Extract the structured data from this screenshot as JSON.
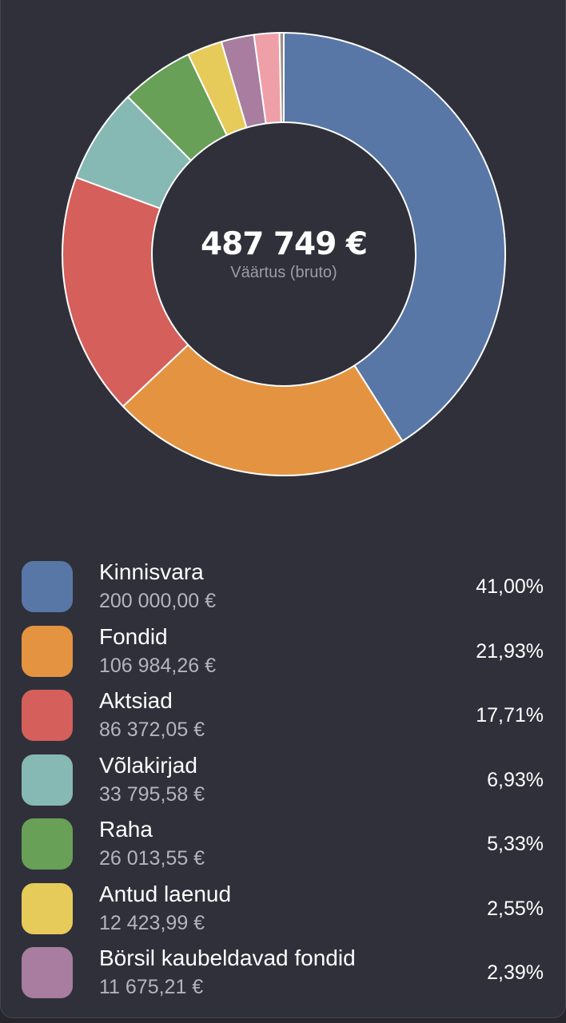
{
  "chart_data": {
    "type": "pie",
    "style": "donut",
    "center": {
      "value": "487 749 €",
      "label": "Väärtus (bruto)"
    },
    "slices": [
      {
        "name": "Kinnisvara",
        "amount": "200 000,00 €",
        "percent_label": "41,00%",
        "value": 41.0,
        "color": "#5877a6"
      },
      {
        "name": "Fondid",
        "amount": "106 984,26 €",
        "percent_label": "21,93%",
        "value": 21.93,
        "color": "#e49441"
      },
      {
        "name": "Aktsiad",
        "amount": "86 372,05 €",
        "percent_label": "17,71%",
        "value": 17.71,
        "color": "#d45f5b"
      },
      {
        "name": "Võlakirjad",
        "amount": "33 795,58 €",
        "percent_label": "6,93%",
        "value": 6.93,
        "color": "#86b8b4"
      },
      {
        "name": "Raha",
        "amount": "26 013,55 €",
        "percent_label": "5,33%",
        "value": 5.33,
        "color": "#67a056"
      },
      {
        "name": "Antud laenud",
        "amount": "12 423,99 €",
        "percent_label": "2,55%",
        "value": 2.55,
        "color": "#e6cb5b"
      },
      {
        "name": "Börsil kaubeldavad fondid",
        "amount": "11 675,21 €",
        "percent_label": "2,39%",
        "value": 2.39,
        "color": "#a87d9f"
      },
      {
        "value": 1.85,
        "color": "#ef9fa8"
      },
      {
        "value": 0.31,
        "color": "#9a8f88"
      }
    ]
  }
}
